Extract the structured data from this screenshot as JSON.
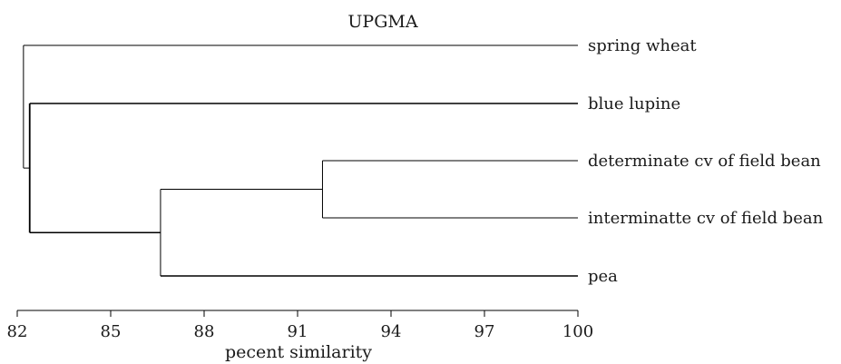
{
  "chart_data": {
    "type": "dendrogram",
    "title": "UPGMA",
    "xlabel": "pecent similarity",
    "xlim": [
      82,
      100
    ],
    "x_ticks": [
      "82",
      "85",
      "88",
      "91",
      "94",
      "97",
      "100"
    ],
    "leaves": [
      "spring wheat",
      "blue lupine",
      "determinate cv of field bean",
      "interminatte cv of field bean",
      "pea"
    ],
    "merges": [
      {
        "similarity": 91.8,
        "members": [
          "determinate cv of field bean",
          "interminatte cv of field bean"
        ]
      },
      {
        "similarity": 86.6,
        "members": [
          "determinate cv of field bean + interminatte cv of field bean",
          "pea"
        ]
      },
      {
        "similarity": 82.4,
        "members": [
          "blue lupine",
          "determinate cv of field bean + interminatte cv of field bean + pea"
        ]
      },
      {
        "similarity": 82.2,
        "members": [
          "spring wheat",
          "blue lupine + determinate cv of field bean + interminatte cv of field bean + pea"
        ]
      }
    ],
    "colors": {
      "line": "#000000",
      "text": "#1a1a1a"
    }
  }
}
